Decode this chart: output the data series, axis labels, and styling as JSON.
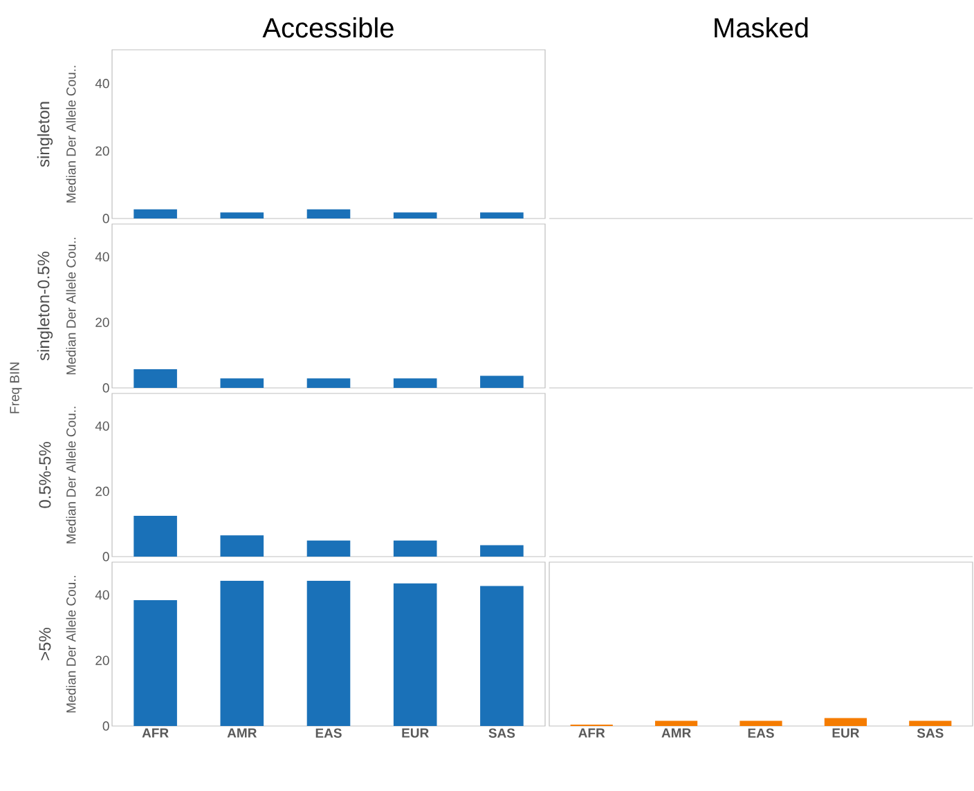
{
  "chart_data": [
    {
      "type": "bar",
      "title": "Accessible",
      "ylabel": "Median Der Allele Cou..",
      "annotations": [
        "singleton"
      ],
      "categories": [
        null,
        null,
        null,
        null,
        null
      ],
      "values": [
        2.7,
        1.8,
        2.7,
        1.8,
        1.8
      ],
      "color": "#1a71b8",
      "ylim": [
        0,
        50
      ],
      "yticks": [
        0,
        20,
        40
      ],
      "tick_labels": "y"
    },
    {
      "type": "other",
      "title": "Masked"
    },
    {
      "type": "bar",
      "ylabel": "Median Der Allele Cou..",
      "annotations": [
        "singleton-0.5%",
        "Freq BIN"
      ],
      "categories": [
        null,
        null,
        null,
        null,
        null
      ],
      "values": [
        5.7,
        2.9,
        2.9,
        2.9,
        3.7
      ],
      "color": "#1a71b8",
      "ylim": [
        0,
        50
      ],
      "yticks": [
        0,
        20,
        40
      ],
      "tick_labels": "y"
    },
    {
      "type": "other"
    },
    {
      "type": "bar",
      "ylabel": "Median Der Allele Cou..",
      "annotations": [
        "0.5%-5%"
      ],
      "categories": [
        null,
        null,
        null,
        null,
        null
      ],
      "values": [
        12.5,
        6.5,
        4.9,
        4.9,
        3.5
      ],
      "color": "#1a71b8",
      "ylim": [
        0,
        50
      ],
      "yticks": [
        0,
        20,
        40
      ],
      "tick_labels": "y"
    },
    {
      "type": "other"
    },
    {
      "type": "bar",
      "ylabel": "Median Der Allele Cou..",
      "annotations": [
        ">5%"
      ],
      "categories": [
        "AFR",
        "AMR",
        "EAS",
        "EUR",
        "SAS"
      ],
      "values": [
        38.4,
        44.3,
        44.3,
        43.5,
        42.7
      ],
      "color": "#1a71b8",
      "ylim": [
        0,
        50
      ],
      "yticks": [
        0,
        20,
        40
      ]
    },
    {
      "type": "bar",
      "categories": [
        "AFR",
        "AMR",
        "EAS",
        "EUR",
        "SAS"
      ],
      "values": [
        0.4,
        1.6,
        1.6,
        2.4,
        1.6
      ],
      "color": "#f57c00",
      "ylim": [
        0,
        50
      ],
      "tick_labels": "x"
    }
  ]
}
